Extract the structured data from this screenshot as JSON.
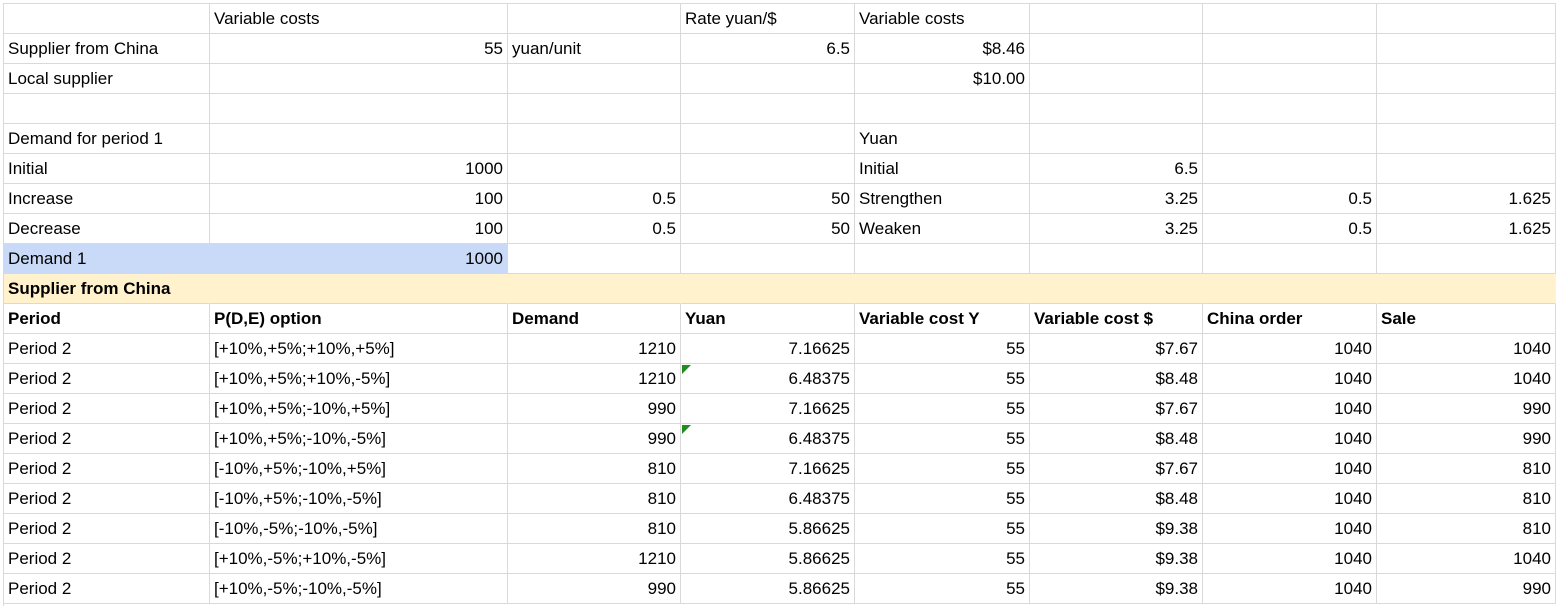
{
  "rows": [
    [
      null,
      "Variable costs",
      null,
      "Rate yuan/$",
      "Variable costs",
      null,
      null,
      null
    ],
    [
      "Supplier from China",
      "55",
      "yuan/unit",
      "6.5",
      "$8.46",
      null,
      null,
      null
    ],
    [
      "Local supplier",
      null,
      null,
      null,
      "$10.00",
      null,
      null,
      null
    ],
    [
      null,
      null,
      null,
      null,
      null,
      null,
      null,
      null
    ],
    [
      "Demand for period 1",
      null,
      null,
      null,
      "Yuan",
      null,
      null,
      null
    ],
    [
      "Initial",
      "1000",
      null,
      null,
      "Initial",
      "6.5",
      null,
      null
    ],
    [
      "Increase",
      "100",
      "0.5",
      "50",
      "Strengthen",
      "3.25",
      "0.5",
      "1.625"
    ],
    [
      "Decrease",
      "100",
      "0.5",
      "50",
      "Weaken",
      "3.25",
      "0.5",
      "1.625"
    ],
    [
      "Demand 1",
      "1000",
      null,
      null,
      null,
      null,
      null,
      null
    ],
    [
      "Supplier from China",
      null,
      null,
      null,
      null,
      null,
      null,
      null
    ],
    [
      "Period",
      "P(D,E) option",
      "Demand",
      "Yuan",
      "Variable cost Y",
      "Variable cost $",
      "China order",
      "Sale"
    ],
    [
      "Period 2",
      "[+10%,+5%;+10%,+5%]",
      "1210",
      "7.16625",
      "55",
      "$7.67",
      "1040",
      "1040"
    ],
    [
      "Period 2",
      "[+10%,+5%;+10%,-5%]",
      "1210",
      "6.48375",
      "55",
      "$8.48",
      "1040",
      "1040"
    ],
    [
      "Period 2",
      "[+10%,+5%;-10%,+5%]",
      "990",
      "7.16625",
      "55",
      "$7.67",
      "1040",
      "990"
    ],
    [
      "Period 2",
      "[+10%,+5%;-10%,-5%]",
      "990",
      "6.48375",
      "55",
      "$8.48",
      "1040",
      "990"
    ],
    [
      "Period 2",
      "[-10%,+5%;-10%,+5%]",
      "810",
      "7.16625",
      "55",
      "$7.67",
      "1040",
      "810"
    ],
    [
      "Period 2",
      "[-10%,+5%;-10%,-5%]",
      "810",
      "6.48375",
      "55",
      "$8.48",
      "1040",
      "810"
    ],
    [
      "Period 2",
      "[-10%,-5%;-10%,-5%]",
      "810",
      "5.86625",
      "55",
      "$9.38",
      "1040",
      "810"
    ],
    [
      "Period 2",
      "[+10%,-5%;+10%,-5%]",
      "1210",
      "5.86625",
      "55",
      "$9.38",
      "1040",
      "1040"
    ],
    [
      "Period 2",
      "[+10%,-5%;-10%,-5%]",
      "990",
      "5.86625",
      "55",
      "$9.38",
      "1040",
      "990"
    ]
  ]
}
